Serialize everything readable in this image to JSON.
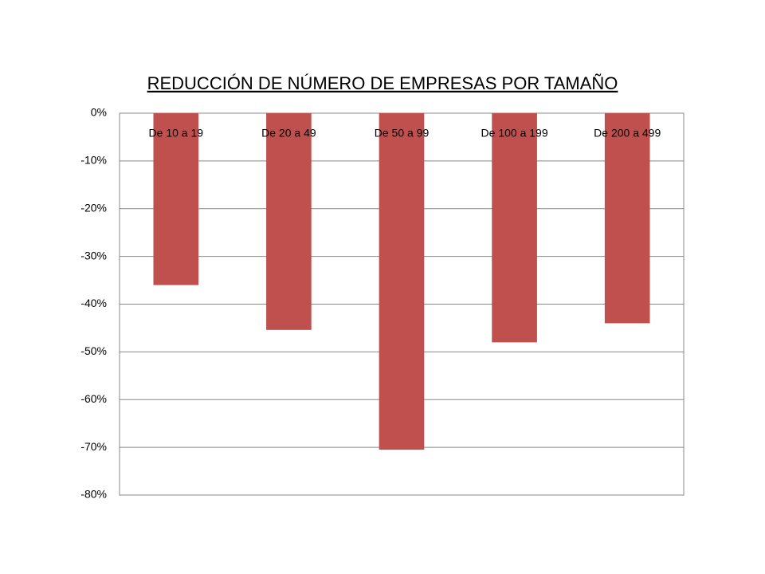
{
  "chart_data": {
    "type": "bar",
    "title": "REDUCCIÓN DE NÚMERO DE EMPRESAS POR TAMAÑO",
    "categories": [
      "De 10 a 19",
      "De 20 a 49",
      "De 50 a 99",
      "De 100 a 199",
      "De 200 a 499"
    ],
    "values": [
      -36,
      -45.4,
      -70.5,
      -48,
      -44
    ],
    "color": "#c0504d",
    "ylim": [
      -80,
      0
    ],
    "yticks": [
      {
        "value": 0,
        "label": "0%"
      },
      {
        "value": -10,
        "label": "-10%"
      },
      {
        "value": -20,
        "label": "-20%"
      },
      {
        "value": -30,
        "label": "-30%"
      },
      {
        "value": -40,
        "label": "-40%"
      },
      {
        "value": -50,
        "label": "-50%"
      },
      {
        "value": -60,
        "label": "-60%"
      },
      {
        "value": -70,
        "label": "-70%"
      },
      {
        "value": -80,
        "label": "-80%"
      }
    ],
    "grid": true
  }
}
